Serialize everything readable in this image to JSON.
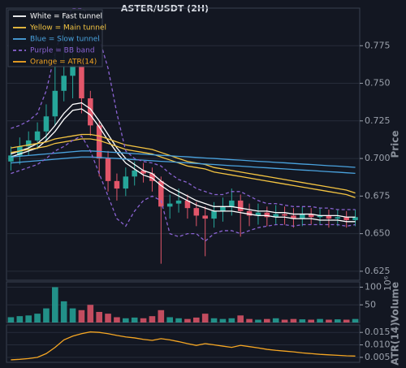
{
  "chart_data": [
    {
      "type": "candlestick",
      "title": "ASTER/USDT (2H)",
      "ylabel": "Price",
      "ylim": [
        0.619,
        0.8
      ],
      "yticks": [
        0.625,
        {
          "value": 0.65,
          "label": "0.650"
        },
        0.675,
        {
          "value": 0.7,
          "label": "0.700"
        },
        0.725,
        {
          "value": 0.75,
          "label": "0.750"
        },
        0.775
      ],
      "grid": true,
      "up_color": "#26a69a",
      "down_color": "#e2566a",
      "open": [
        0.698,
        0.702,
        0.708,
        0.712,
        0.718,
        0.728,
        0.745,
        0.755,
        0.762,
        0.74,
        0.722,
        0.7,
        0.685,
        0.68,
        0.688,
        0.692,
        0.69,
        0.685,
        0.668,
        0.67,
        0.672,
        0.667,
        0.662,
        0.66,
        0.665,
        0.668,
        0.672,
        0.665,
        0.662,
        0.664,
        0.661,
        0.663,
        0.662,
        0.66,
        0.663,
        0.661,
        0.662,
        0.66,
        0.661,
        0.659
      ],
      "high": [
        0.708,
        0.714,
        0.718,
        0.724,
        0.736,
        0.77,
        0.795,
        0.79,
        0.768,
        0.745,
        0.725,
        0.705,
        0.69,
        0.694,
        0.698,
        0.697,
        0.694,
        0.688,
        0.676,
        0.68,
        0.676,
        0.671,
        0.668,
        0.671,
        0.674,
        0.68,
        0.676,
        0.67,
        0.67,
        0.668,
        0.669,
        0.668,
        0.667,
        0.668,
        0.667,
        0.667,
        0.666,
        0.666,
        0.665,
        0.666
      ],
      "low": [
        0.692,
        0.696,
        0.702,
        0.706,
        0.712,
        0.722,
        0.738,
        0.74,
        0.73,
        0.715,
        0.688,
        0.678,
        0.672,
        0.675,
        0.682,
        0.684,
        0.678,
        0.63,
        0.66,
        0.664,
        0.66,
        0.655,
        0.635,
        0.654,
        0.658,
        0.662,
        0.648,
        0.655,
        0.656,
        0.655,
        0.656,
        0.656,
        0.654,
        0.655,
        0.656,
        0.656,
        0.654,
        0.655,
        0.654,
        0.655
      ],
      "close": [
        0.702,
        0.708,
        0.712,
        0.718,
        0.728,
        0.745,
        0.755,
        0.762,
        0.74,
        0.722,
        0.7,
        0.685,
        0.68,
        0.688,
        0.692,
        0.69,
        0.685,
        0.668,
        0.67,
        0.672,
        0.667,
        0.662,
        0.66,
        0.665,
        0.668,
        0.672,
        0.665,
        0.662,
        0.664,
        0.661,
        0.663,
        0.662,
        0.66,
        0.663,
        0.661,
        0.662,
        0.66,
        0.661,
        0.659,
        0.661
      ],
      "lines": [
        {
          "color": "#ffffff",
          "dash": false,
          "values": [
            0.703,
            0.705,
            0.707,
            0.71,
            0.715,
            0.722,
            0.73,
            0.736,
            0.737,
            0.733,
            0.725,
            0.716,
            0.707,
            0.7,
            0.696,
            0.692,
            0.69,
            0.685,
            0.681,
            0.678,
            0.675,
            0.672,
            0.67,
            0.668,
            0.668,
            0.668,
            0.667,
            0.666,
            0.665,
            0.665,
            0.664,
            0.664,
            0.663,
            0.663,
            0.663,
            0.662,
            0.662,
            0.662,
            0.661,
            0.661
          ]
        },
        {
          "color": "#ffffff",
          "dash": false,
          "values": [
            0.701,
            0.703,
            0.705,
            0.707,
            0.712,
            0.718,
            0.726,
            0.732,
            0.733,
            0.729,
            0.721,
            0.712,
            0.704,
            0.697,
            0.693,
            0.689,
            0.687,
            0.682,
            0.678,
            0.675,
            0.672,
            0.669,
            0.667,
            0.665,
            0.665,
            0.665,
            0.664,
            0.663,
            0.662,
            0.662,
            0.661,
            0.661,
            0.66,
            0.66,
            0.66,
            0.659,
            0.659,
            0.659,
            0.658,
            0.658
          ]
        },
        {
          "color": "#f5c542",
          "dash": false,
          "values": [
            0.707,
            0.708,
            0.709,
            0.71,
            0.711,
            0.713,
            0.714,
            0.715,
            0.716,
            0.716,
            0.715,
            0.713,
            0.711,
            0.709,
            0.708,
            0.707,
            0.706,
            0.704,
            0.702,
            0.7,
            0.698,
            0.697,
            0.696,
            0.694,
            0.693,
            0.692,
            0.691,
            0.69,
            0.689,
            0.688,
            0.687,
            0.686,
            0.685,
            0.684,
            0.683,
            0.682,
            0.681,
            0.68,
            0.679,
            0.677
          ]
        },
        {
          "color": "#f5c542",
          "dash": false,
          "values": [
            0.704,
            0.705,
            0.706,
            0.707,
            0.708,
            0.71,
            0.711,
            0.712,
            0.713,
            0.713,
            0.712,
            0.71,
            0.708,
            0.706,
            0.705,
            0.704,
            0.703,
            0.701,
            0.699,
            0.697,
            0.695,
            0.694,
            0.693,
            0.691,
            0.69,
            0.689,
            0.688,
            0.687,
            0.686,
            0.685,
            0.684,
            0.683,
            0.682,
            0.681,
            0.68,
            0.679,
            0.678,
            0.677,
            0.676,
            0.674
          ]
        },
        {
          "color": "#4aa3df",
          "dash": false,
          "values": [
            0.701,
            0.7015,
            0.702,
            0.7025,
            0.703,
            0.7035,
            0.704,
            0.7045,
            0.705,
            0.705,
            0.7047,
            0.7043,
            0.704,
            0.7036,
            0.7032,
            0.7029,
            0.7025,
            0.7021,
            0.7018,
            0.7014,
            0.7011,
            0.7007,
            0.7003,
            0.7,
            0.6996,
            0.6992,
            0.6989,
            0.6985,
            0.6981,
            0.6978,
            0.6974,
            0.6971,
            0.6967,
            0.6963,
            0.696,
            0.6956,
            0.6952,
            0.6949,
            0.6945,
            0.6941
          ]
        },
        {
          "color": "#4aa3df",
          "dash": false,
          "values": [
            0.697,
            0.6975,
            0.698,
            0.6985,
            0.699,
            0.6995,
            0.7,
            0.7005,
            0.701,
            0.701,
            0.7007,
            0.7003,
            0.7,
            0.6996,
            0.6992,
            0.6989,
            0.6985,
            0.6981,
            0.6978,
            0.6974,
            0.6971,
            0.6967,
            0.6963,
            0.696,
            0.6956,
            0.6952,
            0.6949,
            0.6945,
            0.6941,
            0.6938,
            0.6934,
            0.6931,
            0.6927,
            0.6923,
            0.692,
            0.6916,
            0.6912,
            0.6909,
            0.6905,
            0.6901
          ]
        },
        {
          "color": "#8a63d2",
          "dash": true,
          "values": [
            0.72,
            0.722,
            0.725,
            0.73,
            0.745,
            0.77,
            0.79,
            0.8,
            0.8,
            0.795,
            0.78,
            0.76,
            0.73,
            0.705,
            0.7,
            0.698,
            0.697,
            0.695,
            0.69,
            0.686,
            0.684,
            0.68,
            0.678,
            0.676,
            0.676,
            0.678,
            0.678,
            0.675,
            0.672,
            0.67,
            0.67,
            0.669,
            0.668,
            0.668,
            0.668,
            0.667,
            0.667,
            0.666,
            0.666,
            0.666
          ]
        },
        {
          "color": "#8a63d2",
          "dash": true,
          "values": [
            0.69,
            0.692,
            0.694,
            0.696,
            0.7,
            0.705,
            0.708,
            0.712,
            0.715,
            0.705,
            0.69,
            0.675,
            0.66,
            0.655,
            0.665,
            0.672,
            0.675,
            0.672,
            0.65,
            0.648,
            0.65,
            0.65,
            0.645,
            0.65,
            0.652,
            0.652,
            0.65,
            0.652,
            0.654,
            0.655,
            0.656,
            0.656,
            0.655,
            0.656,
            0.656,
            0.656,
            0.656,
            0.656,
            0.655,
            0.656
          ]
        }
      ],
      "legend": [
        {
          "label": "White = Fast tunnel",
          "color": "#ffffff",
          "dash": false
        },
        {
          "label": "Yellow = Main tunnel",
          "color": "#f5c542",
          "dash": false
        },
        {
          "label": "Blue = Slow tunnel",
          "color": "#4aa3df",
          "dash": false
        },
        {
          "label": "Purple = BB band",
          "color": "#8a63d2",
          "dash": true
        },
        {
          "label": "Orange = ATR(14)",
          "color": "#f5a623",
          "dash": false
        }
      ]
    },
    {
      "type": "bar",
      "ylabel": "Volume",
      "scale_label": "10⁶",
      "ylim": [
        0,
        115
      ],
      "yticks": [
        50,
        100
      ],
      "grid": true,
      "values": [
        15,
        18,
        20,
        25,
        40,
        100,
        60,
        40,
        35,
        50,
        30,
        25,
        15,
        12,
        14,
        12,
        18,
        35,
        15,
        12,
        10,
        14,
        25,
        12,
        10,
        12,
        20,
        10,
        8,
        10,
        12,
        8,
        10,
        9,
        8,
        10,
        8,
        9,
        8,
        10
      ]
    },
    {
      "type": "line",
      "ylabel": "ATR(14)",
      "ylim": [
        0.003,
        0.018
      ],
      "yticks": [
        0.015,
        {
          "value": 0.01,
          "label": "0.010"
        },
        0.005
      ],
      "grid": true,
      "color": "#f5a623",
      "values": [
        0.004,
        0.0042,
        0.0045,
        0.005,
        0.0065,
        0.009,
        0.012,
        0.0135,
        0.0145,
        0.0152,
        0.015,
        0.0145,
        0.0138,
        0.0132,
        0.0128,
        0.0122,
        0.0118,
        0.0125,
        0.012,
        0.0113,
        0.0105,
        0.0098,
        0.0105,
        0.01,
        0.0095,
        0.009,
        0.0098,
        0.0093,
        0.0088,
        0.0082,
        0.0078,
        0.0075,
        0.0072,
        0.0068,
        0.0065,
        0.0062,
        0.006,
        0.0058,
        0.0056,
        0.0055
      ]
    }
  ]
}
